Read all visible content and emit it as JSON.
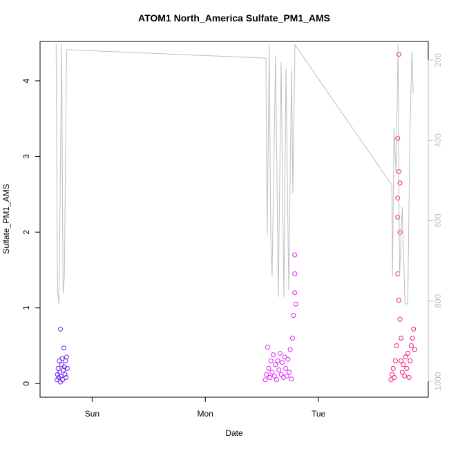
{
  "chart_data": {
    "type": "scatter",
    "title": "ATOM1 North_America Sulfate_PM1_AMS",
    "x_label": "Date",
    "y_label": "Sulfate_PM1_AMS",
    "xlim": [
      -0.46,
      2.97
    ],
    "xticks": [
      {
        "value": 0,
        "label": "Sun"
      },
      {
        "value": 1,
        "label": "Mon"
      },
      {
        "value": 2,
        "label": "Tue"
      }
    ],
    "ylim": [
      -0.18,
      4.52
    ],
    "yticks": [
      0,
      1,
      2,
      3,
      4
    ],
    "y2lim": [
      1039.6,
      153.5
    ],
    "y2ticks": [
      200,
      400,
      600,
      800,
      1000
    ],
    "series": [
      {
        "color": "#6a1bf0",
        "x": [
          -0.31,
          -0.305,
          -0.3,
          -0.295,
          -0.29,
          -0.285,
          -0.28,
          -0.275,
          -0.27,
          -0.265,
          -0.26,
          -0.255,
          -0.25,
          -0.245,
          -0.24,
          -0.235,
          -0.23,
          -0.225,
          -0.22,
          -0.28
        ],
        "values": [
          0.05,
          0.12,
          0.2,
          0.08,
          0.3,
          0.15,
          0.72,
          0.1,
          0.25,
          0.33,
          0.05,
          0.18,
          0.47,
          0.22,
          0.12,
          0.3,
          0.08,
          0.35,
          0.2,
          0.02
        ]
      },
      {
        "color": "#e11df7",
        "x": [
          1.53,
          1.54,
          1.55,
          1.56,
          1.57,
          1.58,
          1.59,
          1.6,
          1.61,
          1.62,
          1.63,
          1.64,
          1.65,
          1.66,
          1.67,
          1.68,
          1.69,
          1.7,
          1.71,
          1.72,
          1.73,
          1.74,
          1.75,
          1.76,
          1.77,
          1.78,
          1.79,
          1.79,
          1.79,
          1.8
        ],
        "values": [
          0.05,
          0.12,
          0.48,
          0.2,
          0.08,
          0.3,
          0.15,
          0.38,
          0.1,
          0.25,
          0.05,
          0.3,
          0.18,
          0.4,
          0.12,
          0.28,
          0.08,
          0.35,
          0.2,
          0.1,
          0.32,
          0.15,
          0.45,
          0.06,
          0.6,
          0.9,
          1.2,
          1.45,
          1.7,
          1.05
        ]
      },
      {
        "color": "#f5157a",
        "x": [
          2.64,
          2.65,
          2.66,
          2.67,
          2.68,
          2.69,
          2.7,
          2.7,
          2.7,
          2.7,
          2.71,
          2.71,
          2.71,
          2.72,
          2.72,
          2.72,
          2.73,
          2.73,
          2.74,
          2.75,
          2.76,
          2.77,
          2.78,
          2.79,
          2.8,
          2.81,
          2.82,
          2.83,
          2.84,
          2.85
        ],
        "values": [
          0.05,
          0.12,
          0.2,
          0.08,
          0.3,
          0.5,
          1.45,
          2.2,
          2.45,
          3.24,
          4.35,
          1.1,
          2.8,
          0.85,
          2.0,
          2.65,
          0.6,
          0.3,
          0.15,
          0.25,
          0.1,
          0.35,
          0.2,
          0.4,
          0.08,
          0.3,
          0.5,
          0.6,
          0.72,
          0.45
        ]
      },
      {
        "type": "line",
        "axis": "y2",
        "color": "#bebebe",
        "x": [
          -0.318,
          -0.306,
          -0.294,
          -0.282,
          -0.269,
          -0.257,
          -0.245,
          -0.226,
          1.535,
          1.547,
          1.565,
          1.578,
          1.59,
          1.621,
          1.645,
          1.67,
          1.694,
          1.713,
          1.737,
          1.762,
          1.774,
          1.792,
          2.648,
          2.654,
          2.667,
          2.685,
          2.703,
          2.716,
          2.74,
          2.764,
          2.789,
          2.807,
          2.825,
          2.837
        ],
        "values": [
          160,
          773,
          807,
          523,
          160,
          781,
          739,
          174,
          195,
          635,
          160,
          635,
          739,
          188,
          790,
          205,
          790,
          222,
          773,
          222,
          532,
          162,
          511,
          739,
          369,
          480,
          160,
          739,
          566,
          807,
          807,
          394,
          179,
          282
        ]
      }
    ]
  }
}
